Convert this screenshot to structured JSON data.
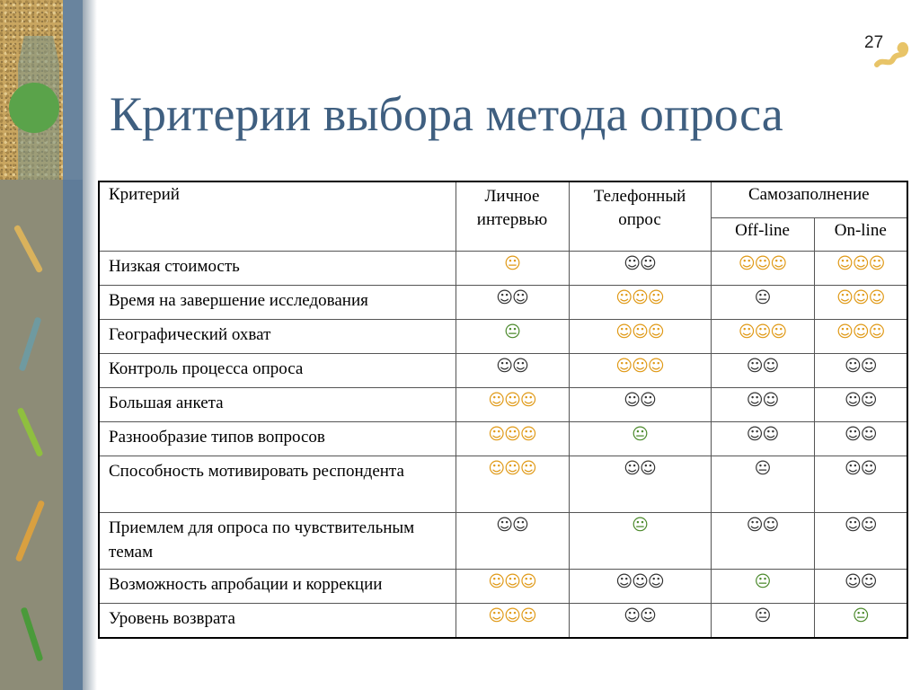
{
  "slide": {
    "number": "27",
    "title": "Критерии выбора метода опроса"
  },
  "colors": {
    "title": "#3f5f80",
    "orange": "#e09a18",
    "dark": "#333333",
    "green": "#4c8a2c"
  },
  "table": {
    "headers": {
      "criterion": "Критерий",
      "personal": "Личное интервью",
      "phone": "Телефонный опрос",
      "self": "Самозаполнение",
      "offline": "Off-line",
      "online": "On-line"
    },
    "rows": [
      {
        "name": "Низкая стоимость",
        "cells": [
          {
            "v": "😐",
            "c": "o"
          },
          {
            "v": "☺☺",
            "c": "d"
          },
          {
            "v": "☺☺☺",
            "c": "o"
          },
          {
            "v": "☺☺☺",
            "c": "o"
          }
        ]
      },
      {
        "name": "Время на завершение исследования",
        "cells": [
          {
            "v": "☺☺",
            "c": "d"
          },
          {
            "v": "☺☺☺",
            "c": "o"
          },
          {
            "v": "😐",
            "c": "d"
          },
          {
            "v": "☺☺☺",
            "c": "o"
          }
        ]
      },
      {
        "name": "Географический охват",
        "cells": [
          {
            "v": "😐",
            "c": "g"
          },
          {
            "v": "☺☺☺",
            "c": "o"
          },
          {
            "v": "☺☺☺",
            "c": "o"
          },
          {
            "v": "☺☺☺",
            "c": "o"
          }
        ]
      },
      {
        "name": "Контроль процесса опроса",
        "cells": [
          {
            "v": "☺☺",
            "c": "d"
          },
          {
            "v": "☺☺☺",
            "c": "o"
          },
          {
            "v": "☺☺",
            "c": "d"
          },
          {
            "v": "☺☺",
            "c": "d"
          }
        ]
      },
      {
        "name": "Большая анкета",
        "cells": [
          {
            "v": "☺☺☺",
            "c": "o"
          },
          {
            "v": "☺☺",
            "c": "d"
          },
          {
            "v": "☺☺",
            "c": "d"
          },
          {
            "v": "☺☺",
            "c": "d"
          }
        ]
      },
      {
        "name": "Разнообразие типов вопросов",
        "cells": [
          {
            "v": "☺☺☺",
            "c": "o"
          },
          {
            "v": "😐",
            "c": "g"
          },
          {
            "v": "☺☺",
            "c": "d"
          },
          {
            "v": "☺☺",
            "c": "d"
          }
        ]
      },
      {
        "name": "Способность мотивировать респондента",
        "cells": [
          {
            "v": "☺☺☺",
            "c": "o"
          },
          {
            "v": "☺☺",
            "c": "d"
          },
          {
            "v": "😐",
            "c": "d"
          },
          {
            "v": "☺☺",
            "c": "d"
          }
        ]
      },
      {
        "name": "Приемлем для опроса по чувствительным темам",
        "cells": [
          {
            "v": "☺☺",
            "c": "d"
          },
          {
            "v": "😐",
            "c": "g"
          },
          {
            "v": "☺☺",
            "c": "d"
          },
          {
            "v": "☺☺",
            "c": "d"
          }
        ]
      },
      {
        "name": "Возможность апробации и коррекции",
        "cells": [
          {
            "v": "☺☺☺",
            "c": "o"
          },
          {
            "v": "☺☺☺",
            "c": "d"
          },
          {
            "v": "😐",
            "c": "g"
          },
          {
            "v": "☺☺",
            "c": "d"
          }
        ]
      },
      {
        "name": "Уровень возврата",
        "cells": [
          {
            "v": "☺☺☺",
            "c": "o"
          },
          {
            "v": "☺☺",
            "c": "d"
          },
          {
            "v": "😐",
            "c": "d"
          },
          {
            "v": "😐",
            "c": "g"
          }
        ]
      }
    ]
  }
}
